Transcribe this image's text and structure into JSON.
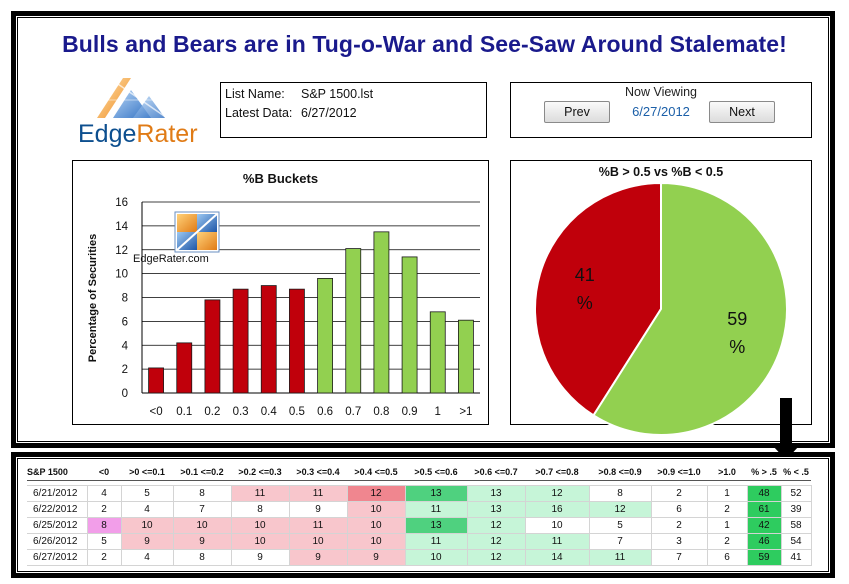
{
  "title": "Bulls and Bears are in Tug-o-War and See-Saw Around Stalemate!",
  "logo": {
    "icon": "edgerater-logo-icon",
    "edge": "Edge",
    "rater": "Rater"
  },
  "info": {
    "list_name_label": "List Name:",
    "list_name": "S&P 1500.lst",
    "latest_label": "Latest Data:",
    "latest_date": "6/27/2012"
  },
  "viewer": {
    "title": "Now Viewing",
    "prev_label": "Prev",
    "next_label": "Next",
    "date": "6/27/2012"
  },
  "watermark": {
    "text": "EdgeRater.com",
    "icon": "edgerater-chart-icon"
  },
  "colors": {
    "bear": "#c0000b",
    "bull": "#92d050",
    "title": "#1a1a8c",
    "bear_cell": "#f8c6cc",
    "bull_cell": "#c6f5d8"
  },
  "chart_data": [
    {
      "type": "bar",
      "title": "%B Buckets",
      "ylabel": "Percentage of Securities",
      "xlabel": "",
      "categories": [
        "<0",
        "0.1",
        "0.2",
        "0.3",
        "0.4",
        "0.5",
        "0.6",
        "0.7",
        "0.8",
        "0.9",
        "1",
        ">1"
      ],
      "values": [
        2.1,
        4.2,
        7.8,
        8.7,
        9.0,
        8.7,
        9.6,
        12.1,
        13.5,
        11.4,
        6.8,
        6.1
      ],
      "bar_colors": [
        "#c0000b",
        "#c0000b",
        "#c0000b",
        "#c0000b",
        "#c0000b",
        "#c0000b",
        "#92d050",
        "#92d050",
        "#92d050",
        "#92d050",
        "#92d050",
        "#92d050"
      ],
      "ylim": [
        0,
        16
      ],
      "yticks": [
        0,
        2,
        4,
        6,
        8,
        10,
        12,
        14,
        16
      ],
      "grid": true
    },
    {
      "type": "pie",
      "title": "%B > 0.5 vs %B < 0.5",
      "slices": [
        {
          "value": 41,
          "label": "41",
          "unit": "%",
          "color": "#c0000b"
        },
        {
          "value": 59,
          "label": "59",
          "unit": "%",
          "color": "#92d050"
        }
      ]
    }
  ],
  "table": {
    "headers": [
      "S&P 1500",
      "<0",
      ">0 <=0.1",
      ">0.1 <=0.2",
      ">0.2 <=0.3",
      ">0.3 <=0.4",
      ">0.4 <=0.5",
      ">0.5 <=0.6",
      ">0.6 <=0.7",
      ">0.7 <=0.8",
      ">0.8 <=0.9",
      ">0.9 <=1.0",
      ">1.0",
      "% > .5",
      "% < .5"
    ],
    "rows": [
      [
        "6/21/2012",
        "4",
        "5",
        "8",
        "11",
        "11",
        "12",
        "13",
        "13",
        "12",
        "8",
        "2",
        "1",
        "48",
        "52"
      ],
      [
        "6/22/2012",
        "2",
        "4",
        "7",
        "8",
        "9",
        "10",
        "11",
        "13",
        "16",
        "12",
        "6",
        "2",
        "61",
        "39"
      ],
      [
        "6/25/2012",
        "8",
        "10",
        "10",
        "10",
        "11",
        "10",
        "13",
        "12",
        "10",
        "5",
        "2",
        "1",
        "42",
        "58"
      ],
      [
        "6/26/2012",
        "5",
        "9",
        "9",
        "10",
        "10",
        "10",
        "11",
        "12",
        "11",
        "7",
        "3",
        "2",
        "46",
        "54"
      ],
      [
        "6/27/2012",
        "2",
        "4",
        "8",
        "9",
        "9",
        "9",
        "10",
        "12",
        "14",
        "11",
        "7",
        "6",
        "59",
        "41"
      ]
    ],
    "cell_colors": [
      [
        "",
        "",
        "",
        "",
        "#f8c6cc",
        "#f8c6cc",
        "#f0868f",
        "#4fd17f",
        "#c6f5d8",
        "#c6f5d8",
        "",
        "",
        "",
        "#2ecc5f",
        ""
      ],
      [
        "",
        "",
        "",
        "",
        "",
        "",
        "#f8c6cc",
        "#c6f5d8",
        "#c6f5d8",
        "#c6f5d8",
        "#c6f5d8",
        "",
        "",
        "#2ecc5f",
        ""
      ],
      [
        "",
        "#f29ee9",
        "#f8c6cc",
        "#f8c6cc",
        "#f8c6cc",
        "#f8c6cc",
        "#f8c6cc",
        "#4fd17f",
        "#c6f5d8",
        "",
        "",
        "",
        "",
        "#2ecc5f",
        ""
      ],
      [
        "",
        "",
        "#f8c6cc",
        "#f8c6cc",
        "#f8c6cc",
        "#f8c6cc",
        "#f8c6cc",
        "#c6f5d8",
        "#c6f5d8",
        "#c6f5d8",
        "",
        "",
        "",
        "#2ecc5f",
        ""
      ],
      [
        "",
        "",
        "",
        "",
        "",
        "#f8c6cc",
        "#f8c6cc",
        "#c6f5d8",
        "#c6f5d8",
        "#c6f5d8",
        "#c6f5d8",
        "",
        "",
        "#2ecc5f",
        ""
      ]
    ]
  }
}
